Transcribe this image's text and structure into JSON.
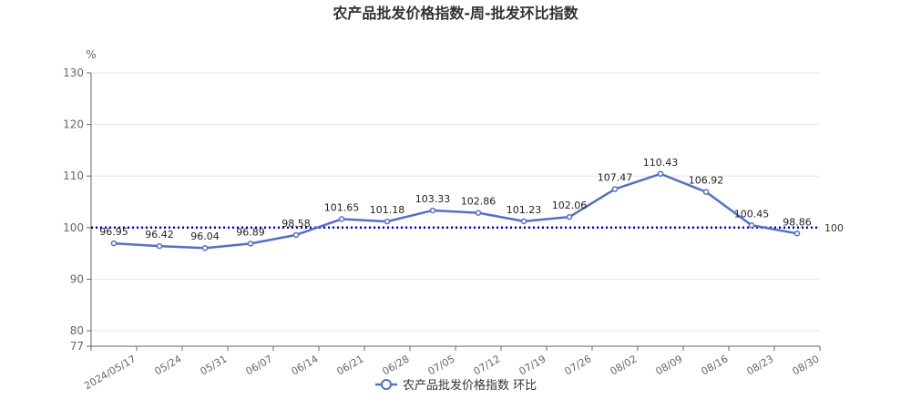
{
  "chart_data": {
    "type": "line",
    "title": "农产品批发价格指数-周-批发环比指数",
    "ylabel": "%",
    "xlabel": "",
    "ylim": [
      77,
      130
    ],
    "yticks": [
      77,
      80,
      90,
      100,
      110,
      120,
      130
    ],
    "grid": true,
    "legend_position": "bottom",
    "categories": [
      "2024/05/17",
      "05/24",
      "05/31",
      "06/07",
      "06/14",
      "06/21",
      "06/28",
      "07/05",
      "07/12",
      "07/19",
      "07/26",
      "08/02",
      "08/09",
      "08/16",
      "08/23",
      "08/30"
    ],
    "series": [
      {
        "name": "农产品批发价格指数 环比",
        "color": "#5470c6",
        "values": [
          96.95,
          96.42,
          96.04,
          96.89,
          98.58,
          101.65,
          101.18,
          103.33,
          102.86,
          101.23,
          102.06,
          107.47,
          110.43,
          106.92,
          100.45,
          98.86
        ],
        "labels": [
          "96.95",
          "96.42",
          "96.04",
          "96.89",
          "98.58",
          "101.65",
          "101.18",
          "103.33",
          "102.86",
          "101.23",
          "102.06",
          "107.47",
          "110.43",
          "106.92",
          "100.45",
          "98.86"
        ]
      }
    ],
    "reference_line": {
      "value": 100,
      "label": "100",
      "color": "#0000cc"
    }
  }
}
